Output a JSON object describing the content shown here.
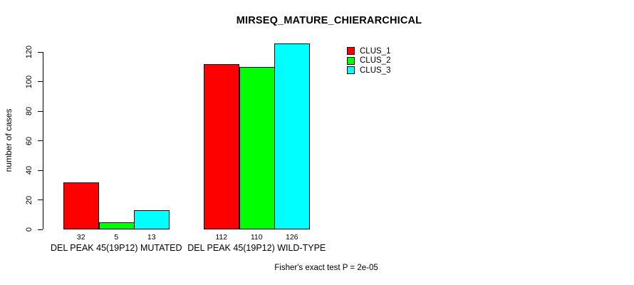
{
  "chart_data": {
    "type": "bar",
    "title": "MIRSEQ_MATURE_CHIERARCHICAL",
    "ylabel": "number of cases",
    "xlabel": "",
    "categories": [
      "DEL PEAK 45(19P12) MUTATED",
      "DEL PEAK 45(19P12) WILD-TYPE"
    ],
    "series": [
      {
        "name": "CLUS_1",
        "color": "#ff0000",
        "values": [
          32,
          112
        ]
      },
      {
        "name": "CLUS_2",
        "color": "#00ff00",
        "values": [
          5,
          110
        ]
      },
      {
        "name": "CLUS_3",
        "color": "#00ffff",
        "values": [
          13,
          126
        ]
      }
    ],
    "ylim": [
      0,
      120
    ],
    "yticks": [
      0,
      20,
      40,
      60,
      80,
      100,
      120
    ],
    "value_labels_shown": true,
    "grid": false,
    "legend_position": "inside-top-right",
    "bar_border_color": "#000000",
    "footnote": "Fisher's exact test P = 2e-05"
  }
}
